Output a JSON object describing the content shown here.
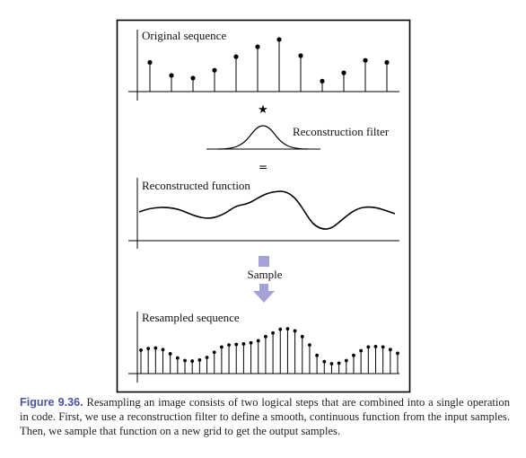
{
  "figure": {
    "panel_labels": {
      "original": "Original sequence",
      "filter": "Reconstruction filter",
      "reconstructed": "Reconstructed function",
      "sample_step": "Sample",
      "resampled": "Resampled sequence"
    },
    "operators": {
      "convolve": "★",
      "equals": "="
    },
    "colors": {
      "arrow": "#a5a3d6",
      "caption_label": "#4a52a8",
      "ink": "#000000"
    },
    "original_samples": [
      0.56,
      0.31,
      0.26,
      0.41,
      0.67,
      0.86,
      1.0,
      0.69,
      0.2,
      0.36,
      0.6,
      0.56
    ],
    "resampled_samples": [
      0.45,
      0.48,
      0.49,
      0.46,
      0.38,
      0.3,
      0.25,
      0.24,
      0.26,
      0.31,
      0.41,
      0.51,
      0.55,
      0.56,
      0.57,
      0.59,
      0.63,
      0.71,
      0.78,
      0.85,
      0.86,
      0.82,
      0.71,
      0.55,
      0.35,
      0.23,
      0.19,
      0.2,
      0.25,
      0.35,
      0.44,
      0.51,
      0.52,
      0.51,
      0.46,
      0.39
    ]
  },
  "caption": {
    "label": "Figure 9.36.",
    "text": "Resampling an image consists of two logical steps that are combined into a single operation in code. First, we use a reconstruction filter to define a smooth, continuous function from the input samples. Then, we sample that function on a new grid to get the output samples."
  }
}
